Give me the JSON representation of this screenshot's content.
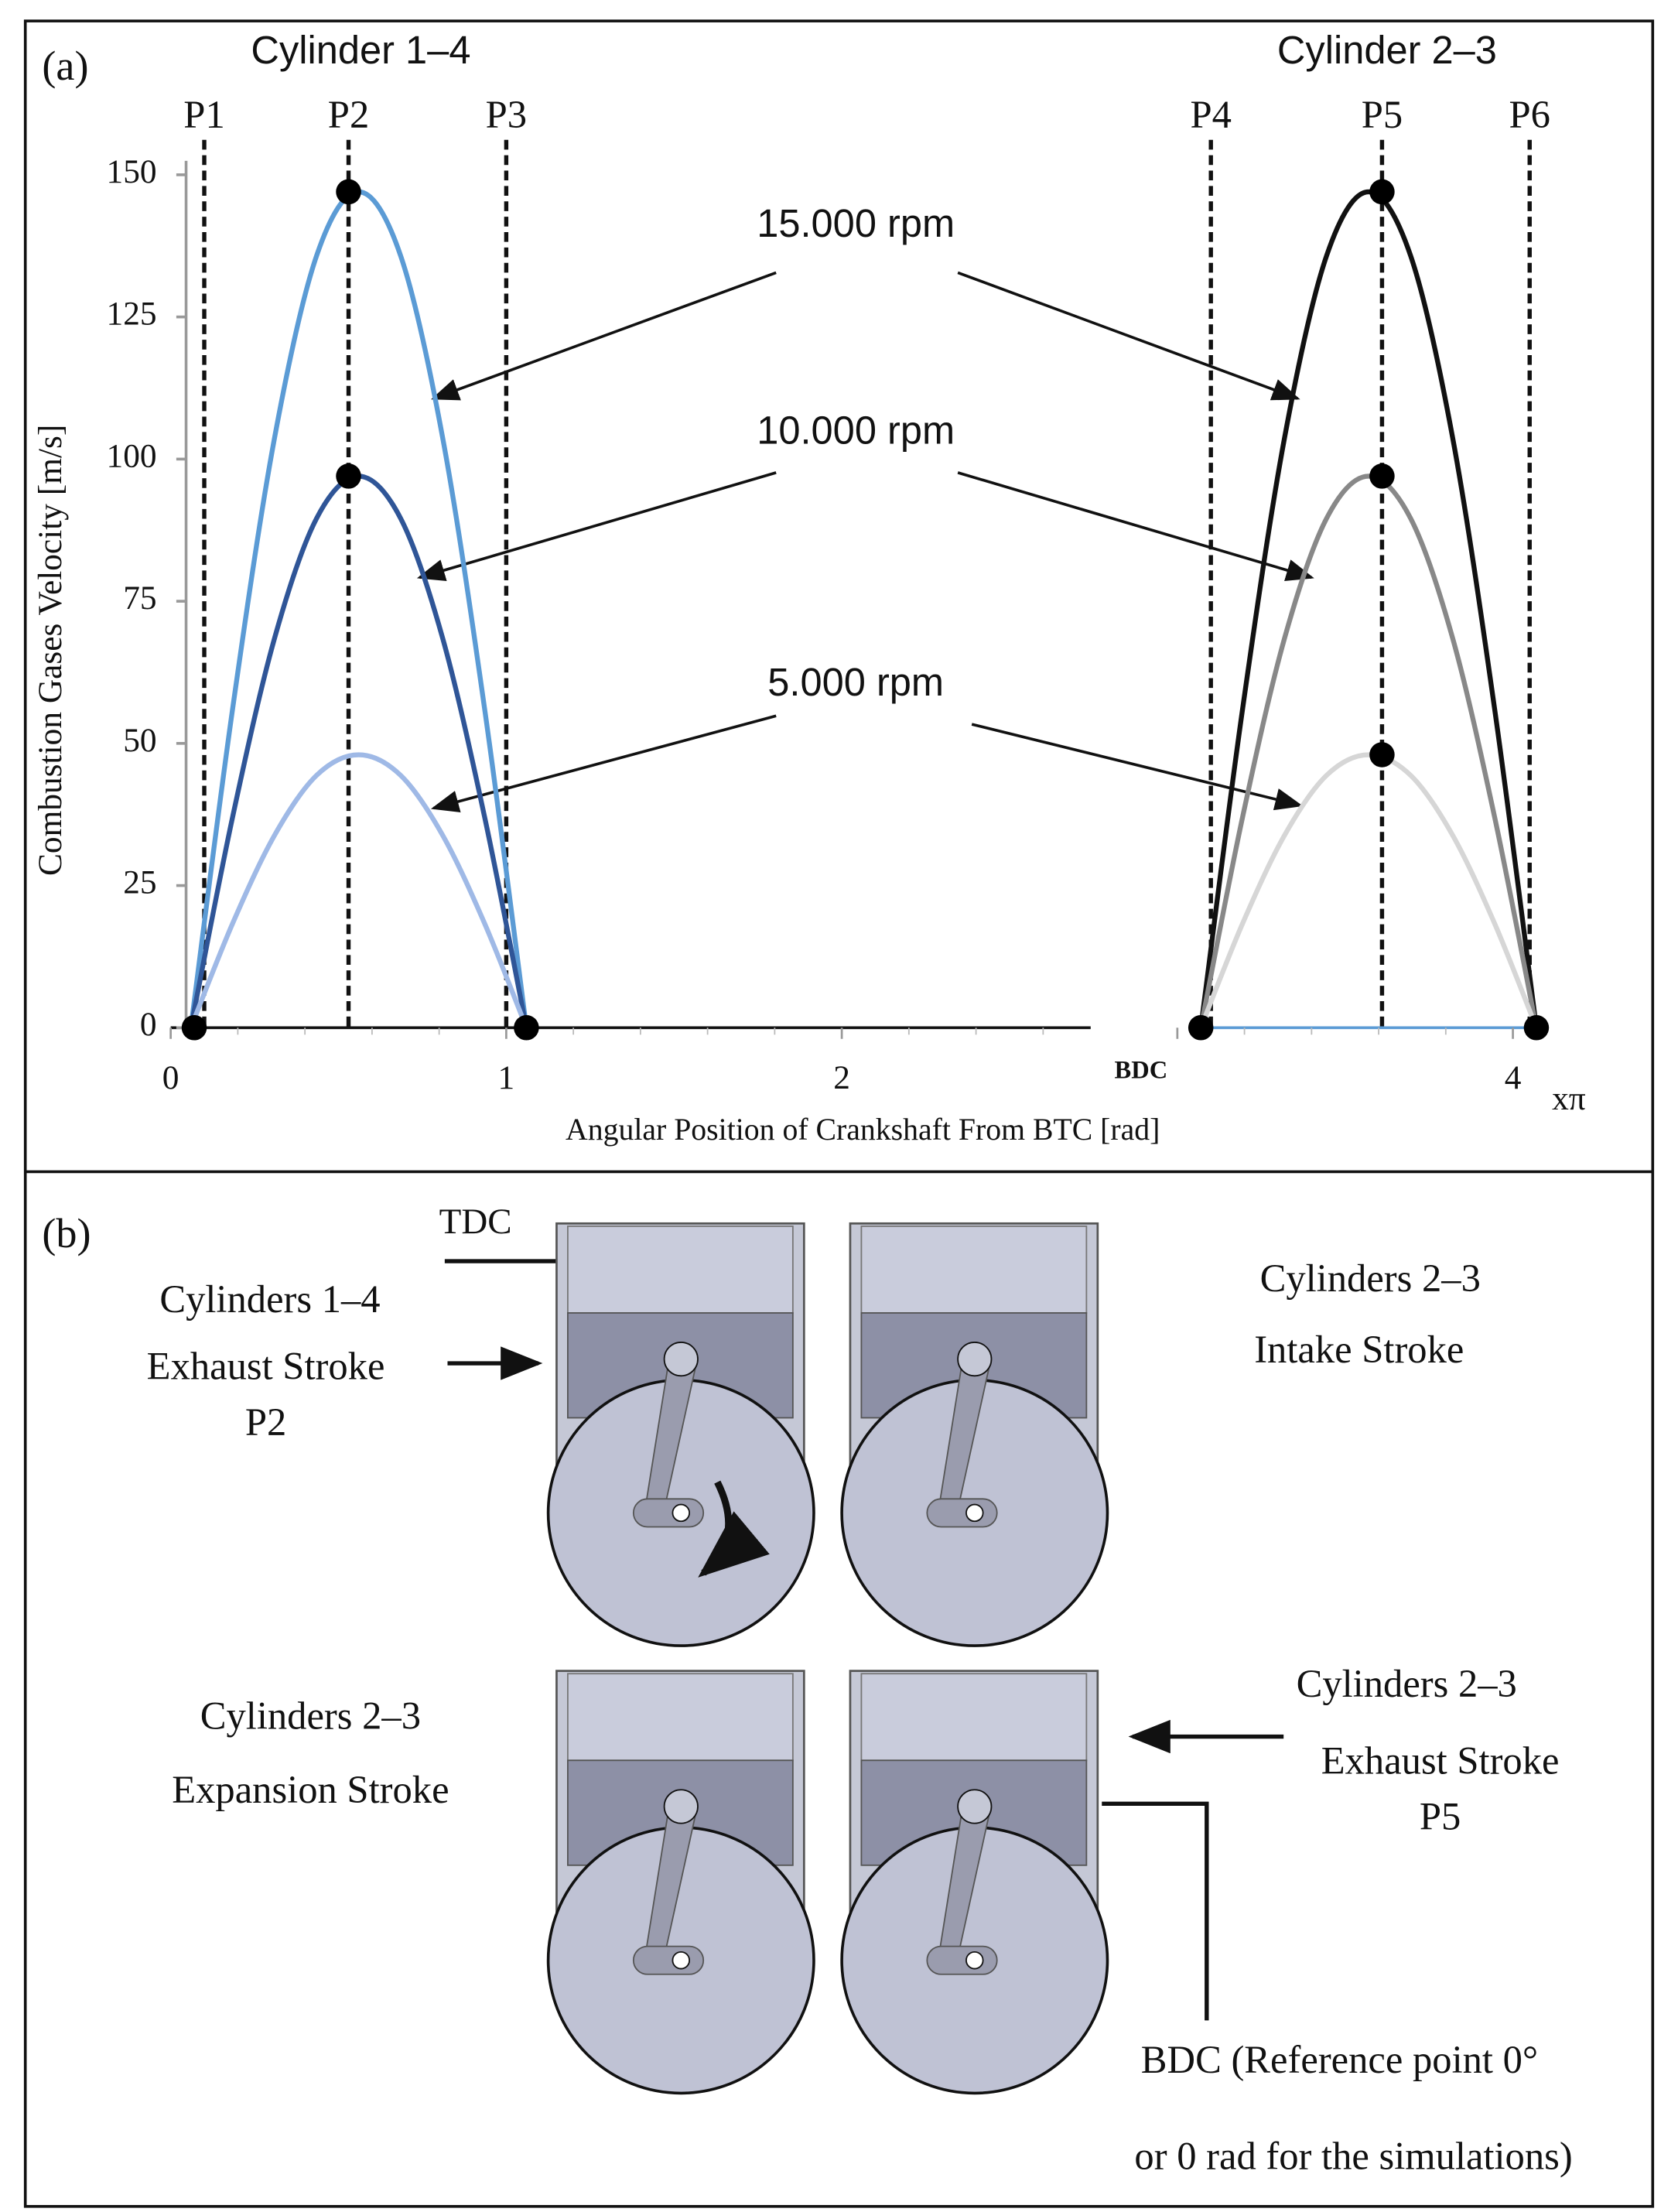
{
  "chart_data": {
    "type": "line",
    "panel_label": "(a)",
    "titles": [
      "Cylinder 1–4",
      "Cylinder 2–3"
    ],
    "y_label": "Combustion Gases Velocity [m/s]",
    "x_label": "Angular Position of Crankshaft From BTC [rad]",
    "x_unit": "xπ",
    "xlim": [
      0,
      4.2
    ],
    "xticks": [
      0,
      1,
      2,
      {
        "value": 3,
        "label": "BDC"
      },
      4
    ],
    "ylim": [
      0,
      150
    ],
    "yticks": [
      0,
      25,
      50,
      75,
      100,
      125,
      150
    ],
    "series": [
      {
        "color": "#5b9bd5",
        "x": [
          0.06,
          0.185,
          0.31,
          0.435,
          0.56,
          0.685,
          0.81,
          0.935,
          1.06
        ],
        "values": [
          0,
          56.3,
          103.9,
          135.8,
          147,
          135.8,
          103.9,
          56.3,
          0
        ]
      },
      {
        "color": "#2f5597",
        "x": [
          0.06,
          0.185,
          0.31,
          0.435,
          0.56,
          0.685,
          0.81,
          0.935,
          1.06
        ],
        "values": [
          0,
          37.2,
          68.6,
          89.6,
          97,
          89.6,
          68.6,
          37.2,
          0
        ]
      },
      {
        "color": "#9fb9e6",
        "x": [
          0.06,
          0.185,
          0.31,
          0.435,
          0.56,
          0.685,
          0.81,
          0.935,
          1.06
        ],
        "values": [
          0,
          18.4,
          33.9,
          44.4,
          48,
          44.4,
          33.9,
          18.4,
          0
        ]
      },
      {
        "color": "#111111",
        "x": [
          3.07,
          3.195,
          3.32,
          3.445,
          3.57,
          3.695,
          3.82,
          3.945,
          4.07
        ],
        "values": [
          0,
          56.3,
          103.9,
          135.8,
          147,
          135.8,
          103.9,
          56.3,
          0
        ]
      },
      {
        "color": "#888888",
        "x": [
          3.07,
          3.195,
          3.32,
          3.445,
          3.57,
          3.695,
          3.82,
          3.945,
          4.07
        ],
        "values": [
          0,
          37.2,
          68.6,
          89.6,
          97,
          89.6,
          68.6,
          37.2,
          0
        ]
      },
      {
        "color": "#d6d6d6",
        "x": [
          3.07,
          3.195,
          3.32,
          3.445,
          3.57,
          3.695,
          3.82,
          3.945,
          4.07
        ],
        "values": [
          0,
          18.4,
          33.9,
          44.4,
          48,
          44.4,
          33.9,
          18.4,
          0
        ]
      }
    ],
    "points": {
      "color": "#000000",
      "x": [
        0.07,
        1.06,
        0.53,
        0.53,
        3.07,
        4.07,
        3.61,
        3.61,
        3.61
      ],
      "values": [
        0,
        0,
        147,
        97,
        0,
        0,
        147,
        97,
        48
      ]
    },
    "position_lines": [
      {
        "label": "P1",
        "x": 0.1
      },
      {
        "label": "P2",
        "x": 0.53
      },
      {
        "label": "P3",
        "x": 1.0
      },
      {
        "label": "P4",
        "x": 3.1
      },
      {
        "label": "P5",
        "x": 3.61
      },
      {
        "label": "P6",
        "x": 4.05
      }
    ],
    "annotations": [
      "15.000 rpm",
      "10.000 rpm",
      "5.000 rpm"
    ]
  },
  "panel_b": {
    "label": "(b)",
    "tdc": "TDC",
    "top_left": [
      "Cylinders 1–4",
      "Exhaust Stroke",
      "P2"
    ],
    "top_right": [
      "Cylinders 2–3",
      "Intake Stroke"
    ],
    "bottom_left": [
      "Cylinders 2–3",
      "Expansion Stroke"
    ],
    "bottom_right": [
      "Cylinders 2–3",
      "Exhaust Stroke",
      "P5"
    ],
    "bdc_note": [
      "BDC (Reference point 0°",
      "or 0 rad for the simulations)"
    ]
  }
}
